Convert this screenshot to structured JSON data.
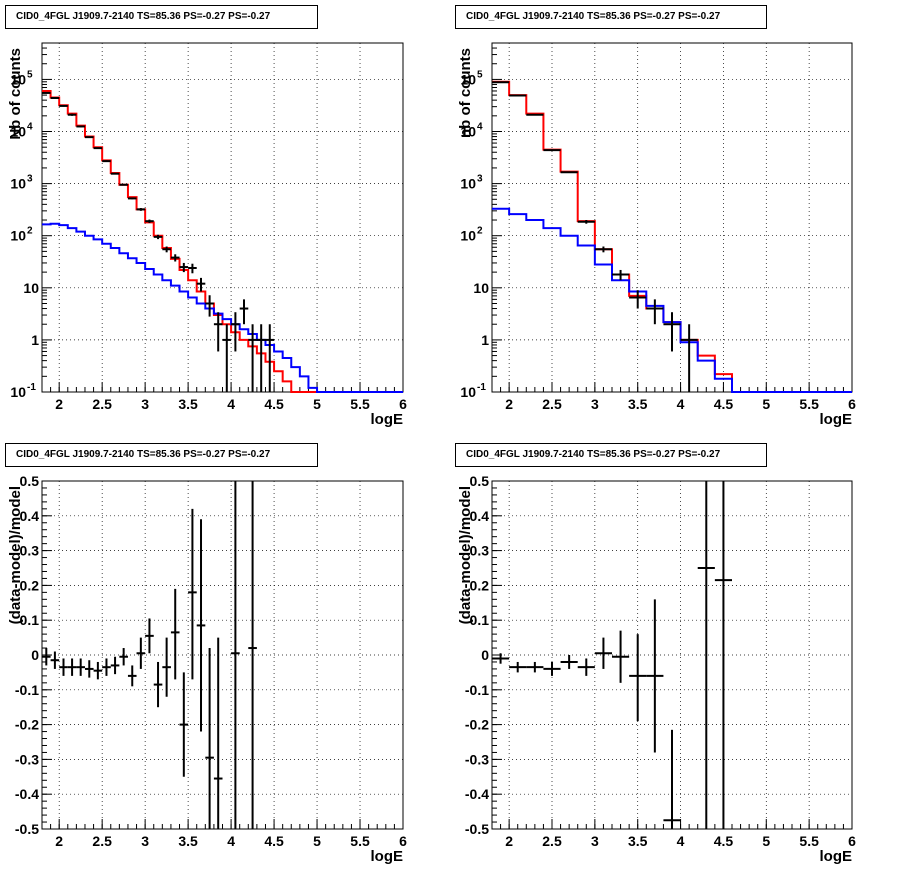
{
  "panels": [
    {
      "title": "CID0_4FGL J1909.7-2140 TS=85.36 PS=-0.27 PS=-0.27",
      "xlabel": "logE",
      "ylabel": "Nb of counts"
    },
    {
      "title": "CID0_4FGL J1909.7-2140 TS=85.36 PS=-0.27 PS=-0.27",
      "xlabel": "logE",
      "ylabel": "nb of counts"
    },
    {
      "title": "CID0_4FGL J1909.7-2140 TS=85.36 PS=-0.27 PS=-0.27",
      "xlabel": "logE",
      "ylabel": "(data-model)/model"
    },
    {
      "title": "CID0_4FGL J1909.7-2140 TS=85.36 PS=-0.27 PS=-0.27",
      "xlabel": "logE",
      "ylabel": "(data-model)/model"
    }
  ],
  "colors": {
    "total_model": "#ff0000",
    "component": "#0000ff",
    "data": "#000000"
  },
  "chart_data": [
    {
      "type": "line",
      "title": "CID0_4FGL J1909.7-2140 TS=85.36 PS=-0.27 PS=-0.27",
      "xlabel": "logE",
      "ylabel": "Nb of counts",
      "xlim": [
        1.8,
        6
      ],
      "ylim": [
        0.1,
        500000
      ],
      "yscale": "log",
      "grid": true,
      "xticks": [
        "2",
        "2.5",
        "3",
        "3.5",
        "4",
        "4.5",
        "5",
        "5.5",
        "6"
      ],
      "yticks": [
        "10^-1",
        "1",
        "10",
        "10^2",
        "10^3",
        "10^4",
        "10^5"
      ],
      "bin_edges": [
        1.8,
        1.9,
        2,
        2.1,
        2.2,
        2.3,
        2.4,
        2.5,
        2.6,
        2.7,
        2.8,
        2.9,
        3,
        3.1,
        3.2,
        3.3,
        3.4,
        3.5,
        3.6,
        3.7,
        3.8,
        3.9,
        4,
        4.1,
        4.2,
        4.3,
        4.4,
        4.5,
        4.6,
        4.7,
        4.8,
        4.9,
        5,
        5.1,
        5.2,
        5.3,
        5.4,
        5.5,
        5.6,
        5.7,
        5.8,
        5.9,
        6
      ],
      "series": [
        {
          "name": "",
          "color": "#ff0000",
          "values": [
            60000,
            45000,
            32000,
            22000,
            13000,
            8000,
            5000,
            2800,
            1600,
            950,
            550,
            320,
            180,
            100,
            58,
            36,
            22,
            14,
            8.5,
            5,
            3,
            2,
            1.4,
            1,
            0.75,
            0.55,
            0.38,
            0.25,
            0.16,
            0.1,
            0.1,
            0.1,
            0.1,
            0.1,
            0.1,
            0.1,
            0.1,
            0.1,
            0.1,
            0.1,
            0.1,
            0.1
          ]
        },
        {
          "name": "",
          "color": "#0000ff",
          "values": [
            165,
            170,
            160,
            140,
            120,
            100,
            85,
            70,
            58,
            46,
            37,
            30,
            23,
            18,
            14,
            11,
            8.5,
            6.5,
            5,
            4,
            3.2,
            2.5,
            2,
            1.6,
            1.3,
            1,
            0.8,
            0.6,
            0.45,
            0.3,
            0.2,
            0.12,
            0.1,
            0.1,
            0.1,
            0.1,
            0.1,
            0.1,
            0.1,
            0.1,
            0.1,
            0.1
          ]
        }
      ],
      "points": [
        {
          "x": 1.85,
          "y": 55000,
          "ylo": 54000,
          "yhi": 56000
        },
        {
          "x": 1.95,
          "y": 44000,
          "ylo": 43000,
          "yhi": 45000
        },
        {
          "x": 2.05,
          "y": 31000,
          "ylo": 30000,
          "yhi": 32000
        },
        {
          "x": 2.15,
          "y": 21000,
          "ylo": 20000,
          "yhi": 22000
        },
        {
          "x": 2.25,
          "y": 12500,
          "ylo": 12000,
          "yhi": 13000
        },
        {
          "x": 2.35,
          "y": 7800,
          "ylo": 7600,
          "yhi": 8000
        },
        {
          "x": 2.45,
          "y": 4800,
          "ylo": 4650,
          "yhi": 4950
        },
        {
          "x": 2.55,
          "y": 2700,
          "ylo": 2600,
          "yhi": 2800
        },
        {
          "x": 2.65,
          "y": 1550,
          "ylo": 1500,
          "yhi": 1600
        },
        {
          "x": 2.75,
          "y": 950,
          "ylo": 920,
          "yhi": 980
        },
        {
          "x": 2.85,
          "y": 520,
          "ylo": 500,
          "yhi": 540
        },
        {
          "x": 2.95,
          "y": 320,
          "ylo": 300,
          "yhi": 340
        },
        {
          "x": 3.05,
          "y": 190,
          "ylo": 176,
          "yhi": 204
        },
        {
          "x": 3.15,
          "y": 95,
          "ylo": 86,
          "yhi": 104
        },
        {
          "x": 3.25,
          "y": 55,
          "ylo": 48,
          "yhi": 62
        },
        {
          "x": 3.35,
          "y": 38,
          "ylo": 32,
          "yhi": 44
        },
        {
          "x": 3.45,
          "y": 25,
          "ylo": 20,
          "yhi": 30
        },
        {
          "x": 3.55,
          "y": 24,
          "ylo": 19,
          "yhi": 29
        },
        {
          "x": 3.65,
          "y": 12,
          "ylo": 8.5,
          "yhi": 15.5
        },
        {
          "x": 3.75,
          "y": 5,
          "ylo": 2.8,
          "yhi": 7.2
        },
        {
          "x": 3.85,
          "y": 2,
          "ylo": 0.6,
          "yhi": 3.4
        },
        {
          "x": 3.95,
          "y": 1,
          "ylo": 0.1,
          "yhi": 2
        },
        {
          "x": 4.05,
          "y": 2,
          "ylo": 0.6,
          "yhi": 3.4
        },
        {
          "x": 4.15,
          "y": 4,
          "ylo": 2,
          "yhi": 6
        },
        {
          "x": 4.25,
          "y": 1,
          "ylo": 0.1,
          "yhi": 2
        },
        {
          "x": 4.35,
          "y": 1,
          "ylo": 0.1,
          "yhi": 2
        },
        {
          "x": 4.45,
          "y": 1,
          "ylo": 0.1,
          "yhi": 2
        }
      ]
    },
    {
      "type": "line",
      "title": "CID0_4FGL J1909.7-2140 TS=85.36 PS=-0.27 PS=-0.27",
      "xlabel": "logE",
      "ylabel": "nb of counts",
      "xlim": [
        1.8,
        6
      ],
      "ylim": [
        0.1,
        500000
      ],
      "yscale": "log",
      "grid": true,
      "xticks": [
        "2",
        "2.5",
        "3",
        "3.5",
        "4",
        "4.5",
        "5",
        "5.5",
        "6"
      ],
      "yticks": [
        "10^-1",
        "1",
        "10",
        "10^2",
        "10^3",
        "10^4",
        "10^5"
      ],
      "bin_edges": [
        1.8,
        2,
        2.2,
        2.4,
        2.6,
        2.8,
        3,
        3.2,
        3.4,
        3.6,
        3.8,
        4,
        4.2,
        4.4,
        4.6,
        4.8,
        5,
        5.2,
        5.4,
        5.6,
        5.8,
        6
      ],
      "series": [
        {
          "name": "",
          "color": "#ff0000",
          "values": [
            90000,
            50000,
            22000,
            4500,
            1700,
            190,
            55,
            18,
            7,
            4,
            2.2,
            1,
            0.5,
            0.22,
            0.1,
            0.1,
            0.1,
            0.1,
            0.1,
            0.1,
            0.1
          ]
        },
        {
          "name": "",
          "color": "#0000ff",
          "values": [
            330,
            260,
            200,
            140,
            100,
            65,
            28,
            14,
            8.5,
            4.5,
            2.2,
            0.9,
            0.4,
            0.18,
            0.1,
            0.1,
            0.1,
            0.1,
            0.1,
            0.1,
            0.1
          ]
        }
      ],
      "points": [
        {
          "x": 1.9,
          "y": 88000,
          "ylo": 87000,
          "yhi": 89000
        },
        {
          "x": 2.1,
          "y": 49000,
          "ylo": 48500,
          "yhi": 49500
        },
        {
          "x": 2.3,
          "y": 21000,
          "ylo": 20800,
          "yhi": 21200
        },
        {
          "x": 2.5,
          "y": 4400,
          "ylo": 4300,
          "yhi": 4500
        },
        {
          "x": 2.7,
          "y": 1650,
          "ylo": 1600,
          "yhi": 1700
        },
        {
          "x": 2.9,
          "y": 185,
          "ylo": 170,
          "yhi": 200
        },
        {
          "x": 3.1,
          "y": 55,
          "ylo": 48,
          "yhi": 62
        },
        {
          "x": 3.3,
          "y": 18,
          "ylo": 14,
          "yhi": 22
        },
        {
          "x": 3.5,
          "y": 6.5,
          "ylo": 4,
          "yhi": 9
        },
        {
          "x": 3.7,
          "y": 4,
          "ylo": 2,
          "yhi": 6
        },
        {
          "x": 3.9,
          "y": 2,
          "ylo": 0.6,
          "yhi": 3.4
        },
        {
          "x": 4.1,
          "y": 1,
          "ylo": 0.1,
          "yhi": 2
        }
      ]
    },
    {
      "type": "scatter",
      "title": "CID0_4FGL J1909.7-2140 TS=85.36 PS=-0.27 PS=-0.27",
      "xlabel": "logE",
      "ylabel": "(data-model)/model",
      "xlim": [
        1.8,
        6
      ],
      "ylim": [
        -0.5,
        0.5
      ],
      "grid": true,
      "xticks": [
        "2",
        "2.5",
        "3",
        "3.5",
        "4",
        "4.5",
        "5",
        "5.5",
        "6"
      ],
      "yticks": [
        "-0.5",
        "-0.4",
        "-0.3",
        "-0.2",
        "-0.1",
        "0",
        "0.1",
        "0.2",
        "0.3",
        "0.4",
        "0.5"
      ],
      "points": [
        {
          "x": 1.85,
          "y": -0.005,
          "ylo": -0.03,
          "yhi": 0.02
        },
        {
          "x": 1.95,
          "y": -0.015,
          "ylo": -0.04,
          "yhi": 0.01
        },
        {
          "x": 2.05,
          "y": -0.035,
          "ylo": -0.06,
          "yhi": -0.01
        },
        {
          "x": 2.15,
          "y": -0.035,
          "ylo": -0.06,
          "yhi": -0.01
        },
        {
          "x": 2.25,
          "y": -0.035,
          "ylo": -0.06,
          "yhi": -0.01
        },
        {
          "x": 2.35,
          "y": -0.04,
          "ylo": -0.065,
          "yhi": -0.015
        },
        {
          "x": 2.45,
          "y": -0.045,
          "ylo": -0.07,
          "yhi": -0.02
        },
        {
          "x": 2.55,
          "y": -0.035,
          "ylo": -0.06,
          "yhi": -0.01
        },
        {
          "x": 2.65,
          "y": -0.03,
          "ylo": -0.055,
          "yhi": -0.005
        },
        {
          "x": 2.75,
          "y": -0.005,
          "ylo": -0.03,
          "yhi": 0.02
        },
        {
          "x": 2.85,
          "y": -0.06,
          "ylo": -0.09,
          "yhi": -0.03
        },
        {
          "x": 2.95,
          "y": 0.005,
          "ylo": -0.04,
          "yhi": 0.05
        },
        {
          "x": 3.05,
          "y": 0.055,
          "ylo": 0.005,
          "yhi": 0.105
        },
        {
          "x": 3.15,
          "y": -0.085,
          "ylo": -0.15,
          "yhi": -0.02
        },
        {
          "x": 3.25,
          "y": -0.035,
          "ylo": -0.12,
          "yhi": 0.05
        },
        {
          "x": 3.35,
          "y": 0.065,
          "ylo": -0.07,
          "yhi": 0.19
        },
        {
          "x": 3.45,
          "y": -0.2,
          "ylo": -0.35,
          "yhi": -0.05
        },
        {
          "x": 3.55,
          "y": 0.18,
          "ylo": -0.07,
          "yhi": 0.42
        },
        {
          "x": 3.65,
          "y": 0.085,
          "ylo": -0.22,
          "yhi": 0.39
        },
        {
          "x": 3.75,
          "y": -0.295,
          "ylo": -0.5,
          "yhi": 0.02
        },
        {
          "x": 3.85,
          "y": -0.355,
          "ylo": -0.5,
          "yhi": 0.05
        },
        {
          "x": 4.05,
          "y": 0.005,
          "ylo": -0.5,
          "yhi": 0.5
        },
        {
          "x": 4.25,
          "y": 0.02,
          "ylo": -0.5,
          "yhi": 0.5
        }
      ]
    },
    {
      "type": "scatter",
      "title": "CID0_4FGL J1909.7-2140 TS=85.36 PS=-0.27 PS=-0.27",
      "xlabel": "logE",
      "ylabel": "(data-model)/model",
      "xlim": [
        1.8,
        6
      ],
      "ylim": [
        -0.5,
        0.5
      ],
      "grid": true,
      "xticks": [
        "2",
        "2.5",
        "3",
        "3.5",
        "4",
        "4.5",
        "5",
        "5.5",
        "6"
      ],
      "yticks": [
        "-0.5",
        "-0.4",
        "-0.3",
        "-0.2",
        "-0.1",
        "0",
        "0.1",
        "0.2",
        "0.3",
        "0.4",
        "0.5"
      ],
      "points": [
        {
          "x": 1.9,
          "y": -0.01,
          "ylo": -0.025,
          "yhi": 0.005
        },
        {
          "x": 2.1,
          "y": -0.035,
          "ylo": -0.05,
          "yhi": -0.02
        },
        {
          "x": 2.3,
          "y": -0.035,
          "ylo": -0.05,
          "yhi": -0.02
        },
        {
          "x": 2.5,
          "y": -0.04,
          "ylo": -0.06,
          "yhi": -0.02
        },
        {
          "x": 2.7,
          "y": -0.02,
          "ylo": -0.04,
          "yhi": 0.0
        },
        {
          "x": 2.9,
          "y": -0.035,
          "ylo": -0.06,
          "yhi": -0.01
        },
        {
          "x": 3.1,
          "y": 0.005,
          "ylo": -0.04,
          "yhi": 0.05
        },
        {
          "x": 3.3,
          "y": -0.005,
          "ylo": -0.08,
          "yhi": 0.07
        },
        {
          "x": 3.5,
          "y": -0.06,
          "ylo": -0.19,
          "yhi": 0.06
        },
        {
          "x": 3.7,
          "y": -0.06,
          "ylo": -0.28,
          "yhi": 0.16
        },
        {
          "x": 3.9,
          "y": -0.475,
          "ylo": -0.5,
          "yhi": -0.215
        },
        {
          "x": 4.3,
          "y": 0.25,
          "ylo": -0.5,
          "yhi": 0.5
        },
        {
          "x": 4.5,
          "y": 0.215,
          "ylo": -0.5,
          "yhi": 0.5
        }
      ]
    }
  ]
}
